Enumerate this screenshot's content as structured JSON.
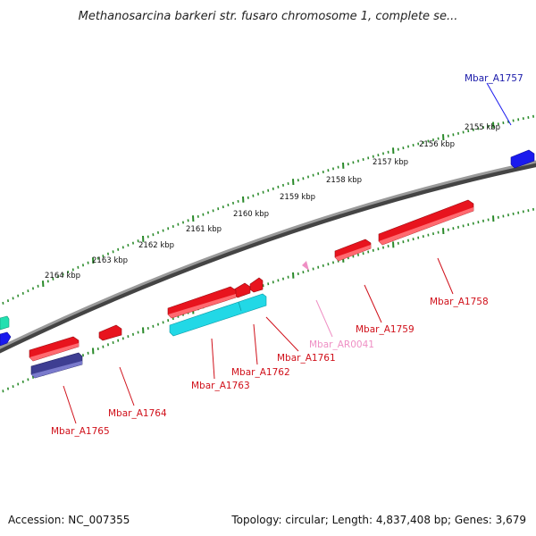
{
  "title": "Methanosarcina barkeri str. fusaro chromosome 1, complete se...",
  "footer": {
    "accession": "Accession: NC_007355",
    "summary": "Topology: circular; Length: 4,837,408 bp; Genes: 3,679"
  },
  "colors": {
    "backbone": "#7a7a7a",
    "tick": "#2a8a2a",
    "gene_red": "#e8141e",
    "gene_cyan": "#22d8e6",
    "gene_navy": "#3e3e92",
    "gene_blue": "#1a1aee",
    "gene_teal": "#22e0b0",
    "rna_pink": "#ef8fc4",
    "label_red": "#d0101a",
    "label_blue": "#1a1aaa",
    "label_pink": "#ef8fc4"
  },
  "ruler": {
    "scale_labels": [
      "2155 kbp",
      "2156 kbp",
      "2157 kbp",
      "2158 kbp",
      "2159 kbp",
      "2160 kbp",
      "2161 kbp",
      "2162 kbp",
      "2163 kbp",
      "2164 kbp"
    ]
  },
  "gene_labels": [
    {
      "name": "Mbar_A1757",
      "color": "blue"
    },
    {
      "name": "Mbar_A1758",
      "color": "red"
    },
    {
      "name": "Mbar_A1759",
      "color": "red"
    },
    {
      "name": "Mbar_AR0041",
      "color": "pink"
    },
    {
      "name": "Mbar_A1761",
      "color": "red"
    },
    {
      "name": "Mbar_A1762",
      "color": "red"
    },
    {
      "name": "Mbar_A1763",
      "color": "red"
    },
    {
      "name": "Mbar_A1764",
      "color": "red"
    },
    {
      "name": "Mbar_A1765",
      "color": "red"
    }
  ]
}
